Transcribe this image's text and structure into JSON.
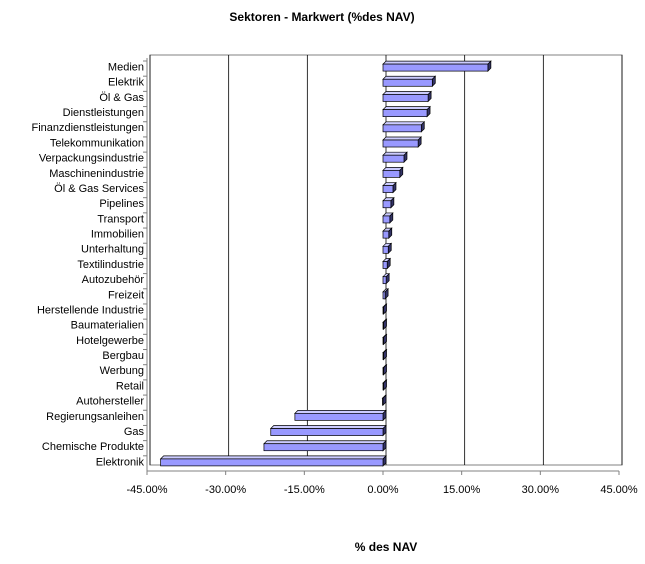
{
  "chart_data": {
    "type": "hbar",
    "title": "Sektoren - Markwert (%des NAV)",
    "x_label": "% des NAV",
    "categories": [
      "Medien",
      "Elektrik",
      "Öl & Gas",
      "Dienstleistungen",
      "Finanzdienstleistungen",
      "Telekommunikation",
      "Verpackungsindustrie",
      "Maschinenindustrie",
      "Öl & Gas Services",
      "Pipelines",
      "Transport",
      "Immobilien",
      "Unterhaltung",
      "Textilindustrie",
      "Autozubehör",
      "Freizeit",
      "Herstellende Industrie",
      "Baumaterialien",
      "Hotelgewerbe",
      "Bergbau",
      "Werbung",
      "Retail",
      "Autohersteller",
      "Regierungsanleihen",
      "Gas",
      "Chemische Produkte",
      "Elektronik"
    ],
    "values": [
      20,
      9.4,
      8.6,
      8.4,
      7.3,
      6.7,
      4.0,
      3.2,
      1.9,
      1.5,
      1.3,
      1.1,
      1.0,
      0.8,
      0.6,
      0.4,
      0.1,
      0.1,
      0.1,
      0.1,
      0.1,
      0.1,
      -0.1,
      -16.8,
      -21.4,
      -22.7,
      -42.4
    ],
    "color": "#9999ff",
    "xlim": [
      -45,
      45
    ],
    "xticks": [
      {
        "value": -45,
        "label": "-45.00%"
      },
      {
        "value": -30,
        "label": "-30.00%"
      },
      {
        "value": -15,
        "label": "-15.00%"
      },
      {
        "value": 0,
        "label": "0.00%"
      },
      {
        "value": 15,
        "label": "15.00%"
      },
      {
        "value": 30,
        "label": "30.00%"
      },
      {
        "value": 45,
        "label": "45.00%"
      }
    ],
    "grid": true
  }
}
